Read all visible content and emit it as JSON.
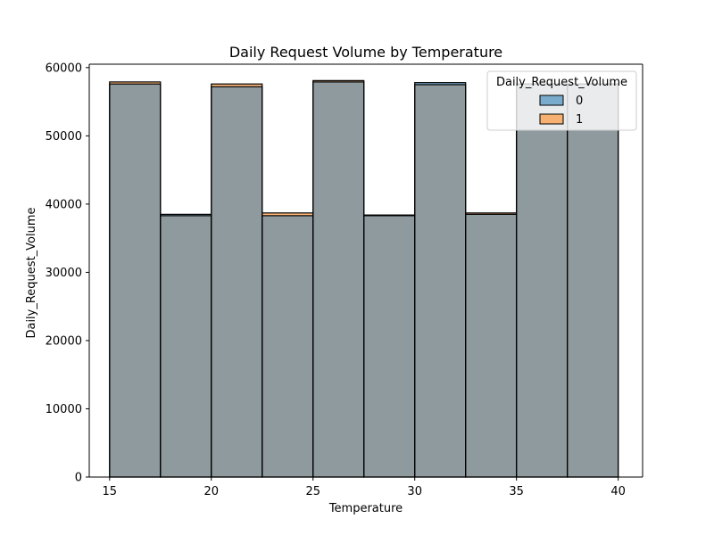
{
  "chart_data": {
    "type": "bar",
    "title": "Daily Request Volume by Temperature",
    "xlabel": "Temperature",
    "ylabel": "Daily_Request_Volume",
    "xlim": [
      14,
      41.2
    ],
    "ylim": [
      0,
      60500
    ],
    "xticks": [
      15,
      20,
      25,
      30,
      35,
      40
    ],
    "yticks": [
      0,
      10000,
      20000,
      30000,
      40000,
      50000,
      60000
    ],
    "bin_edges": [
      15,
      17.5,
      20,
      22.5,
      25,
      27.5,
      30,
      32.5,
      35,
      37.5,
      40
    ],
    "series": [
      {
        "name": "0",
        "color": "#1f77b4",
        "values": [
          57600,
          38500,
          57200,
          38300,
          57900,
          38400,
          57800,
          38500,
          57600,
          57600
        ]
      },
      {
        "name": "1",
        "color": "#ff7f0e",
        "values": [
          57900,
          38300,
          57600,
          38700,
          58100,
          38300,
          57500,
          38700,
          57600,
          57600
        ]
      }
    ],
    "legend": {
      "title": "Daily_Request_Volume",
      "placement": "top-right"
    },
    "overlap_color": "#8f9a9e",
    "grid": false
  }
}
